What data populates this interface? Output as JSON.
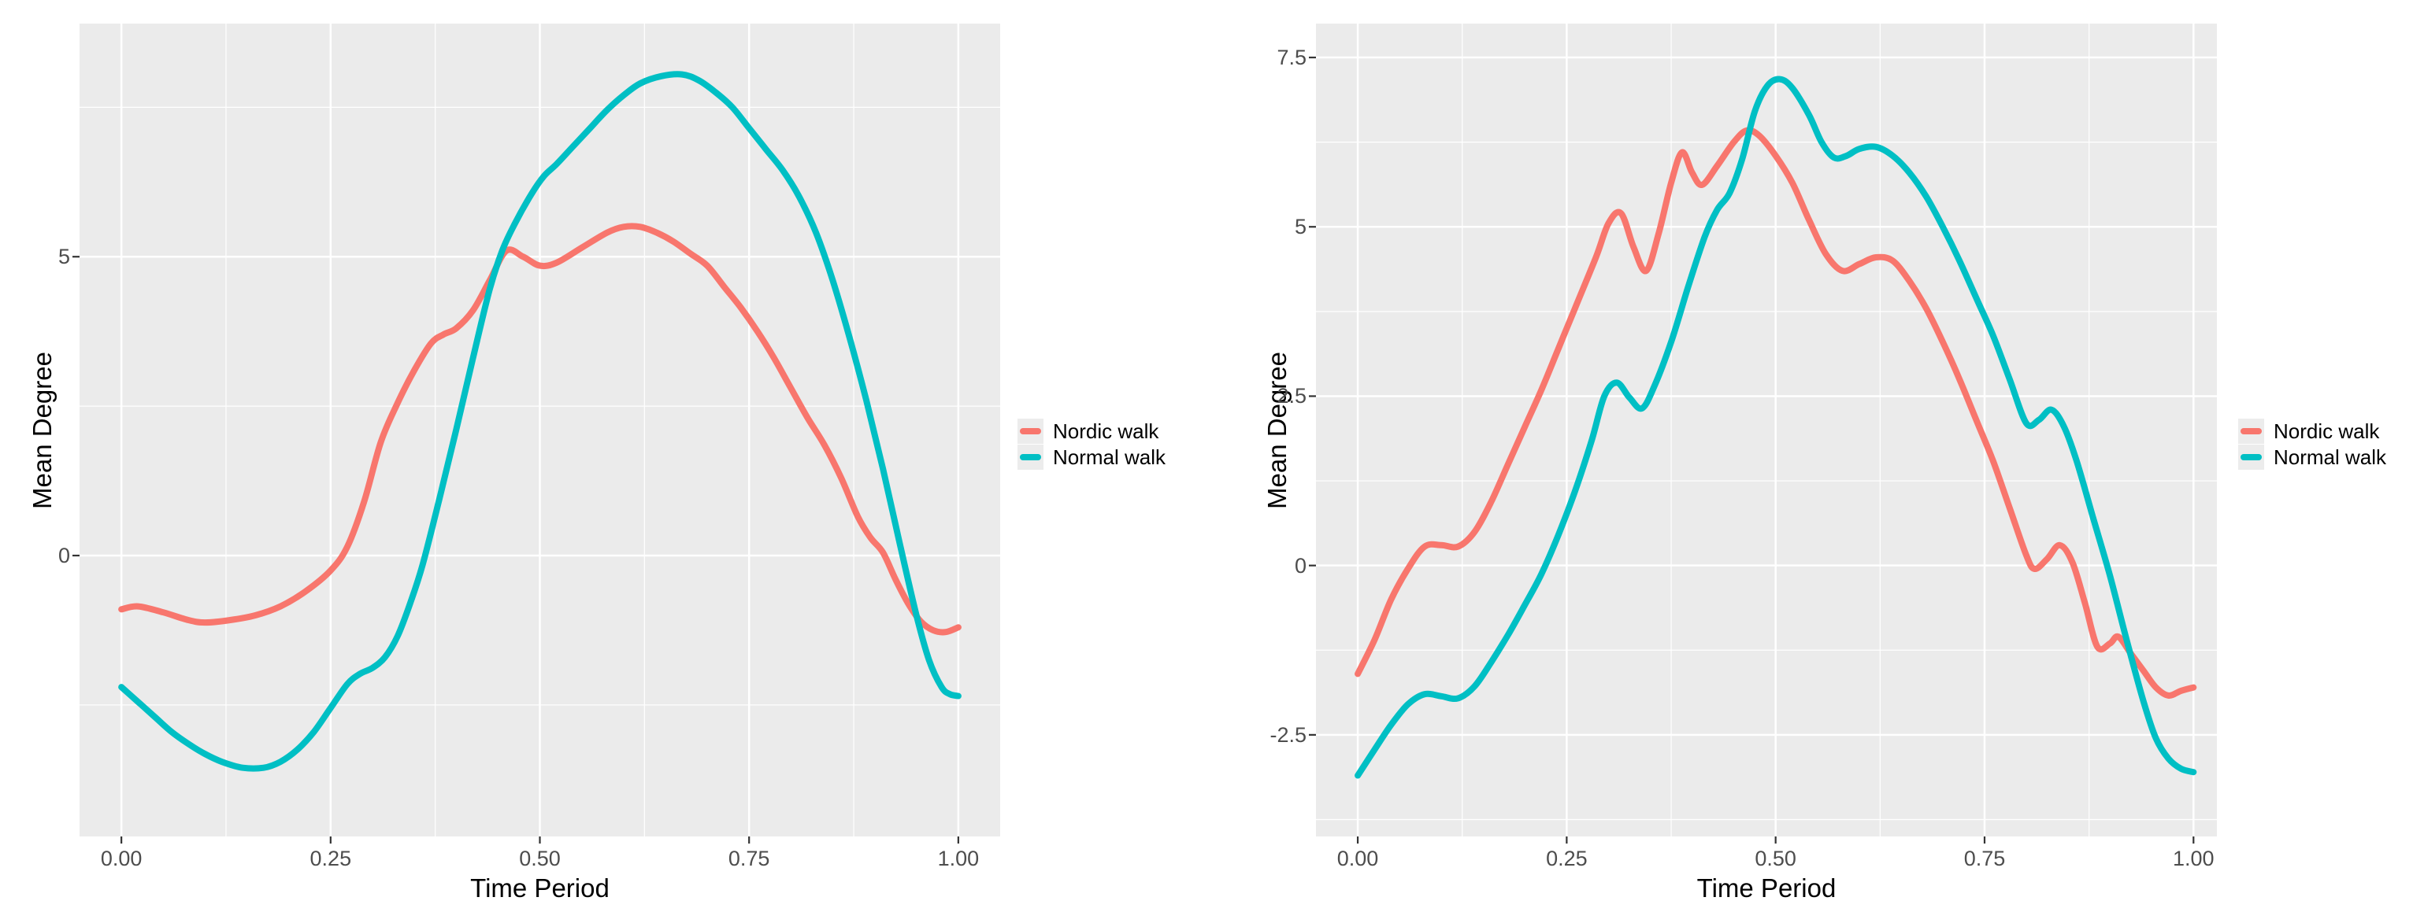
{
  "figure": {
    "background": "#FFFFFF",
    "panel_background": "#EBEBEB",
    "grid_color": "#FFFFFF",
    "tick_text_color": "#4D4D4D",
    "tick_mark_color": "#333333",
    "axis_title_color": "#000000"
  },
  "chart_data": [
    {
      "type": "line",
      "name": "left-plot",
      "title": "",
      "xlabel": "Time Period",
      "ylabel": "Mean Degree",
      "xlim": [
        -0.05,
        1.05
      ],
      "ylim": [
        -4.7,
        8.9
      ],
      "grid": true,
      "legend_position": "right",
      "x_ticks": {
        "values": [
          0,
          0.25,
          0.5,
          0.75,
          1
        ],
        "labels": [
          "0.00",
          "0.25",
          "0.50",
          "0.75",
          "1.00"
        ],
        "minor": [
          0.125,
          0.375,
          0.625,
          0.875
        ]
      },
      "y_ticks": {
        "values": [
          0,
          5
        ],
        "labels": [
          "0",
          "5"
        ],
        "minor": [
          -2.5,
          2.5,
          7.5
        ]
      },
      "series": [
        {
          "name": "Nordic walk",
          "color": "#F8766D",
          "points": [
            [
              0.0,
              -0.9
            ],
            [
              0.02,
              -0.85
            ],
            [
              0.05,
              -0.95
            ],
            [
              0.08,
              -1.08
            ],
            [
              0.1,
              -1.12
            ],
            [
              0.13,
              -1.08
            ],
            [
              0.16,
              -1.0
            ],
            [
              0.19,
              -0.85
            ],
            [
              0.22,
              -0.6
            ],
            [
              0.25,
              -0.25
            ],
            [
              0.27,
              0.15
            ],
            [
              0.29,
              0.9
            ],
            [
              0.31,
              1.9
            ],
            [
              0.33,
              2.55
            ],
            [
              0.35,
              3.1
            ],
            [
              0.37,
              3.55
            ],
            [
              0.385,
              3.7
            ],
            [
              0.4,
              3.8
            ],
            [
              0.42,
              4.1
            ],
            [
              0.44,
              4.6
            ],
            [
              0.46,
              5.1
            ],
            [
              0.48,
              5.0
            ],
            [
              0.5,
              4.85
            ],
            [
              0.52,
              4.9
            ],
            [
              0.55,
              5.15
            ],
            [
              0.58,
              5.4
            ],
            [
              0.6,
              5.5
            ],
            [
              0.62,
              5.5
            ],
            [
              0.64,
              5.4
            ],
            [
              0.66,
              5.25
            ],
            [
              0.68,
              5.05
            ],
            [
              0.7,
              4.85
            ],
            [
              0.72,
              4.5
            ],
            [
              0.74,
              4.15
            ],
            [
              0.76,
              3.75
            ],
            [
              0.78,
              3.3
            ],
            [
              0.8,
              2.8
            ],
            [
              0.82,
              2.3
            ],
            [
              0.84,
              1.85
            ],
            [
              0.86,
              1.3
            ],
            [
              0.88,
              0.65
            ],
            [
              0.895,
              0.3
            ],
            [
              0.91,
              0.05
            ],
            [
              0.925,
              -0.4
            ],
            [
              0.94,
              -0.8
            ],
            [
              0.955,
              -1.1
            ],
            [
              0.97,
              -1.25
            ],
            [
              0.985,
              -1.28
            ],
            [
              1.0,
              -1.2
            ]
          ]
        },
        {
          "name": "Normal walk",
          "color": "#00BFC4",
          "points": [
            [
              0.0,
              -2.2
            ],
            [
              0.02,
              -2.45
            ],
            [
              0.04,
              -2.7
            ],
            [
              0.06,
              -2.95
            ],
            [
              0.08,
              -3.15
            ],
            [
              0.1,
              -3.32
            ],
            [
              0.12,
              -3.45
            ],
            [
              0.145,
              -3.55
            ],
            [
              0.17,
              -3.55
            ],
            [
              0.19,
              -3.45
            ],
            [
              0.21,
              -3.25
            ],
            [
              0.23,
              -2.95
            ],
            [
              0.25,
              -2.55
            ],
            [
              0.27,
              -2.15
            ],
            [
              0.285,
              -1.98
            ],
            [
              0.3,
              -1.88
            ],
            [
              0.315,
              -1.7
            ],
            [
              0.33,
              -1.35
            ],
            [
              0.345,
              -0.8
            ],
            [
              0.36,
              -0.15
            ],
            [
              0.38,
              0.95
            ],
            [
              0.4,
              2.1
            ],
            [
              0.42,
              3.3
            ],
            [
              0.44,
              4.45
            ],
            [
              0.455,
              5.1
            ],
            [
              0.47,
              5.55
            ],
            [
              0.49,
              6.05
            ],
            [
              0.505,
              6.35
            ],
            [
              0.52,
              6.55
            ],
            [
              0.54,
              6.85
            ],
            [
              0.56,
              7.15
            ],
            [
              0.58,
              7.45
            ],
            [
              0.6,
              7.7
            ],
            [
              0.62,
              7.9
            ],
            [
              0.645,
              8.02
            ],
            [
              0.67,
              8.05
            ],
            [
              0.69,
              7.95
            ],
            [
              0.71,
              7.75
            ],
            [
              0.73,
              7.5
            ],
            [
              0.75,
              7.15
            ],
            [
              0.77,
              6.8
            ],
            [
              0.79,
              6.45
            ],
            [
              0.81,
              6.0
            ],
            [
              0.83,
              5.4
            ],
            [
              0.85,
              4.6
            ],
            [
              0.87,
              3.65
            ],
            [
              0.89,
              2.6
            ],
            [
              0.91,
              1.45
            ],
            [
              0.93,
              0.2
            ],
            [
              0.95,
              -1.0
            ],
            [
              0.965,
              -1.75
            ],
            [
              0.98,
              -2.2
            ],
            [
              0.99,
              -2.32
            ],
            [
              1.0,
              -2.35
            ]
          ]
        }
      ]
    },
    {
      "type": "line",
      "name": "right-plot",
      "title": "",
      "xlabel": "Time Period",
      "ylabel": "Mean Degree",
      "xlim": [
        -0.05,
        1.028
      ],
      "ylim": [
        -4.0,
        8.0
      ],
      "grid": true,
      "legend_position": "right",
      "x_ticks": {
        "values": [
          0,
          0.25,
          0.5,
          0.75,
          1
        ],
        "labels": [
          "0.00",
          "0.25",
          "0.50",
          "0.75",
          "1.00"
        ],
        "minor": [
          0.125,
          0.375,
          0.625,
          0.875
        ]
      },
      "y_ticks": {
        "values": [
          -2.5,
          0,
          2.5,
          5,
          7.5
        ],
        "labels": [
          "-2.5",
          "0",
          "2.5",
          "5",
          "7.5"
        ],
        "minor": [
          -3.75,
          -1.25,
          1.25,
          3.75,
          6.25
        ]
      },
      "series": [
        {
          "name": "Nordic walk",
          "color": "#F8766D",
          "points": [
            [
              0.0,
              -1.6
            ],
            [
              0.02,
              -1.1
            ],
            [
              0.04,
              -0.5
            ],
            [
              0.06,
              -0.05
            ],
            [
              0.08,
              0.28
            ],
            [
              0.1,
              0.3
            ],
            [
              0.12,
              0.28
            ],
            [
              0.14,
              0.5
            ],
            [
              0.16,
              0.95
            ],
            [
              0.18,
              1.5
            ],
            [
              0.2,
              2.05
            ],
            [
              0.22,
              2.6
            ],
            [
              0.24,
              3.2
            ],
            [
              0.26,
              3.8
            ],
            [
              0.285,
              4.55
            ],
            [
              0.3,
              5.05
            ],
            [
              0.315,
              5.2
            ],
            [
              0.33,
              4.7
            ],
            [
              0.345,
              4.35
            ],
            [
              0.36,
              4.9
            ],
            [
              0.375,
              5.65
            ],
            [
              0.388,
              6.1
            ],
            [
              0.4,
              5.8
            ],
            [
              0.412,
              5.62
            ],
            [
              0.43,
              5.9
            ],
            [
              0.45,
              6.25
            ],
            [
              0.465,
              6.42
            ],
            [
              0.48,
              6.35
            ],
            [
              0.5,
              6.05
            ],
            [
              0.52,
              5.65
            ],
            [
              0.54,
              5.1
            ],
            [
              0.56,
              4.6
            ],
            [
              0.58,
              4.35
            ],
            [
              0.6,
              4.45
            ],
            [
              0.62,
              4.55
            ],
            [
              0.64,
              4.5
            ],
            [
              0.66,
              4.2
            ],
            [
              0.68,
              3.8
            ],
            [
              0.7,
              3.3
            ],
            [
              0.72,
              2.75
            ],
            [
              0.74,
              2.15
            ],
            [
              0.76,
              1.55
            ],
            [
              0.78,
              0.85
            ],
            [
              0.8,
              0.15
            ],
            [
              0.81,
              -0.05
            ],
            [
              0.825,
              0.1
            ],
            [
              0.84,
              0.3
            ],
            [
              0.855,
              0.05
            ],
            [
              0.87,
              -0.55
            ],
            [
              0.885,
              -1.2
            ],
            [
              0.9,
              -1.15
            ],
            [
              0.91,
              -1.05
            ],
            [
              0.925,
              -1.3
            ],
            [
              0.94,
              -1.55
            ],
            [
              0.955,
              -1.8
            ],
            [
              0.97,
              -1.92
            ],
            [
              0.985,
              -1.85
            ],
            [
              1.0,
              -1.8
            ]
          ]
        },
        {
          "name": "Normal walk",
          "color": "#00BFC4",
          "points": [
            [
              0.0,
              -3.1
            ],
            [
              0.02,
              -2.72
            ],
            [
              0.04,
              -2.35
            ],
            [
              0.06,
              -2.05
            ],
            [
              0.08,
              -1.9
            ],
            [
              0.1,
              -1.93
            ],
            [
              0.12,
              -1.96
            ],
            [
              0.14,
              -1.78
            ],
            [
              0.16,
              -1.42
            ],
            [
              0.18,
              -1.02
            ],
            [
              0.2,
              -0.58
            ],
            [
              0.22,
              -0.12
            ],
            [
              0.24,
              0.45
            ],
            [
              0.26,
              1.1
            ],
            [
              0.28,
              1.85
            ],
            [
              0.295,
              2.5
            ],
            [
              0.31,
              2.7
            ],
            [
              0.325,
              2.48
            ],
            [
              0.34,
              2.32
            ],
            [
              0.355,
              2.65
            ],
            [
              0.375,
              3.3
            ],
            [
              0.395,
              4.1
            ],
            [
              0.415,
              4.85
            ],
            [
              0.43,
              5.25
            ],
            [
              0.445,
              5.5
            ],
            [
              0.46,
              6.0
            ],
            [
              0.475,
              6.7
            ],
            [
              0.49,
              7.08
            ],
            [
              0.505,
              7.18
            ],
            [
              0.52,
              7.05
            ],
            [
              0.54,
              6.65
            ],
            [
              0.555,
              6.25
            ],
            [
              0.57,
              6.02
            ],
            [
              0.585,
              6.05
            ],
            [
              0.6,
              6.15
            ],
            [
              0.62,
              6.18
            ],
            [
              0.64,
              6.05
            ],
            [
              0.66,
              5.8
            ],
            [
              0.68,
              5.45
            ],
            [
              0.7,
              5.0
            ],
            [
              0.72,
              4.5
            ],
            [
              0.74,
              3.95
            ],
            [
              0.76,
              3.4
            ],
            [
              0.78,
              2.75
            ],
            [
              0.8,
              2.1
            ],
            [
              0.815,
              2.15
            ],
            [
              0.83,
              2.3
            ],
            [
              0.845,
              2.05
            ],
            [
              0.86,
              1.55
            ],
            [
              0.88,
              0.7
            ],
            [
              0.9,
              -0.15
            ],
            [
              0.92,
              -1.1
            ],
            [
              0.94,
              -2.0
            ],
            [
              0.955,
              -2.55
            ],
            [
              0.97,
              -2.85
            ],
            [
              0.985,
              -3.0
            ],
            [
              1.0,
              -3.05
            ]
          ]
        }
      ]
    }
  ]
}
